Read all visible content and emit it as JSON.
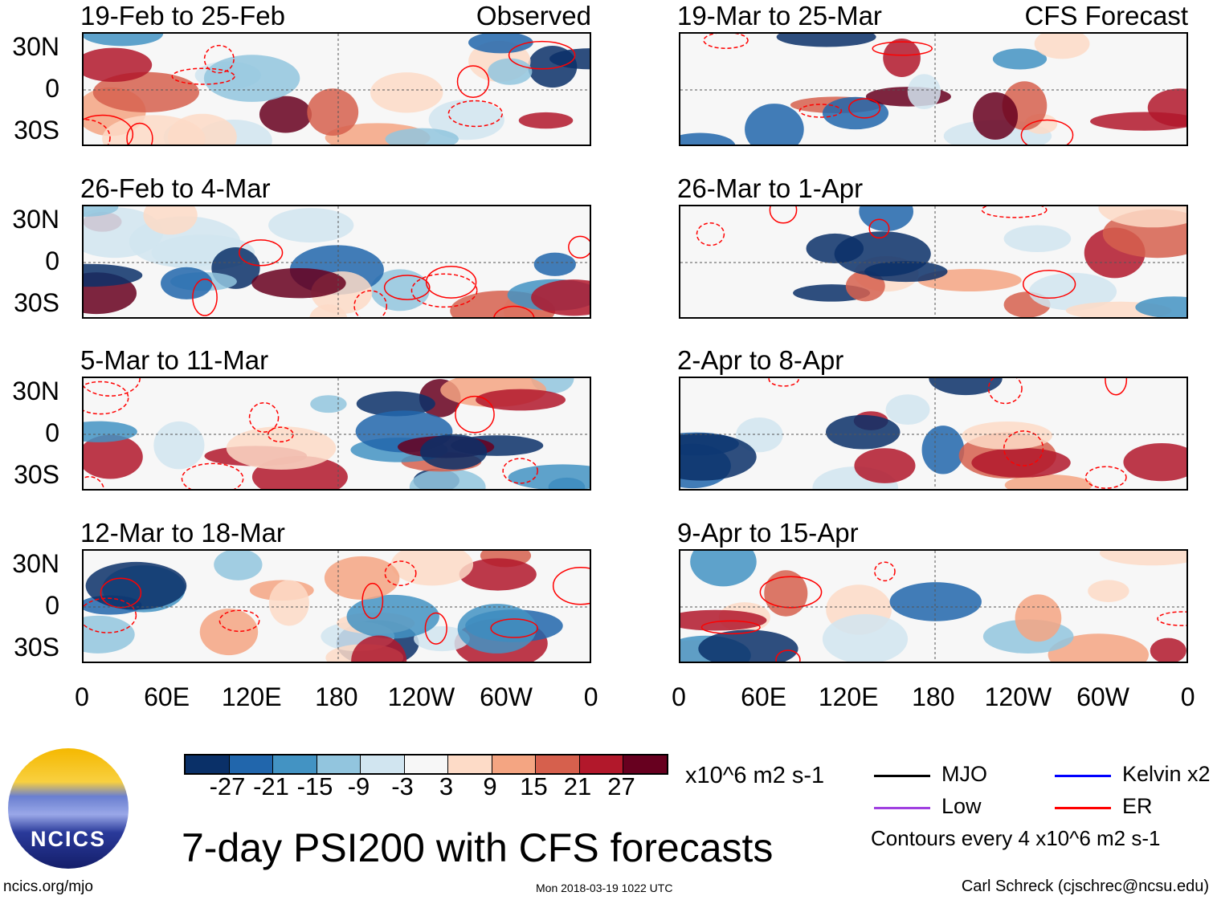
{
  "panels_left": [
    {
      "title": "19-Feb to 25-Feb",
      "tag": "Observed"
    },
    {
      "title": "26-Feb to 4-Mar"
    },
    {
      "title": "5-Mar to 11-Mar"
    },
    {
      "title": "12-Mar to 18-Mar"
    }
  ],
  "panels_right": [
    {
      "title": "19-Mar to 25-Mar",
      "tag": "CFS Forecast"
    },
    {
      "title": "26-Mar to 1-Apr"
    },
    {
      "title": "2-Apr to 8-Apr"
    },
    {
      "title": "9-Apr to 15-Apr"
    }
  ],
  "lat_ticks": [
    "30N",
    "0",
    "30S"
  ],
  "lon_ticks": [
    "0",
    "60E",
    "120E",
    "180",
    "120W",
    "60W",
    "0"
  ],
  "colorbar": {
    "colors": [
      "#0a3068",
      "#2166ac",
      "#4393c3",
      "#92c5de",
      "#d1e5f0",
      "#f7f7f7",
      "#fddbc7",
      "#f4a582",
      "#d6604d",
      "#b2182b",
      "#67001f"
    ],
    "labels": [
      "-27",
      "-21",
      "-15",
      "-9",
      "-3",
      "3",
      "9",
      "15",
      "21",
      "27"
    ],
    "units": "x10^6 m2 s-1"
  },
  "legend": {
    "items": [
      {
        "label": "MJO",
        "color": "#000000"
      },
      {
        "label": "Kelvin x2",
        "color": "#0000ff"
      },
      {
        "label": "Low",
        "color": "#a040e0"
      },
      {
        "label": "ER",
        "color": "#ff0000"
      }
    ],
    "note": "Contours every 4 x10^6 m2 s-1"
  },
  "title": "7-day PSI200 with CFS forecasts",
  "logo_text": "NCICS",
  "url": "ncics.org/mjo",
  "timestamp": "Mon 2018-03-19 1022 UTC",
  "credit": "Carl Schreck (cjschrec@ncsu.edu)"
}
